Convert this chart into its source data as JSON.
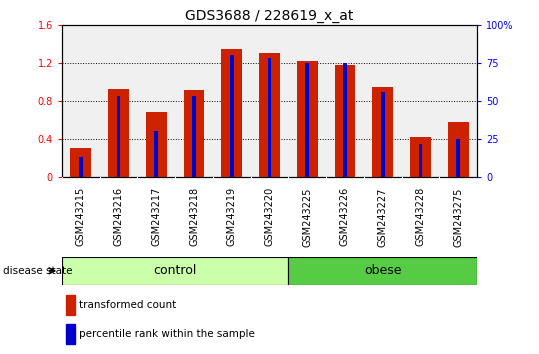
{
  "title": "GDS3688 / 228619_x_at",
  "samples": [
    "GSM243215",
    "GSM243216",
    "GSM243217",
    "GSM243218",
    "GSM243219",
    "GSM243220",
    "GSM243225",
    "GSM243226",
    "GSM243227",
    "GSM243228",
    "GSM243275"
  ],
  "transformed_count": [
    0.3,
    0.93,
    0.68,
    0.91,
    1.35,
    1.3,
    1.22,
    1.18,
    0.95,
    0.42,
    0.58
  ],
  "percentile_pct": [
    13,
    53,
    30,
    53,
    80,
    78,
    75,
    75,
    56,
    22,
    25
  ],
  "bar_color": "#cc2200",
  "blue_color": "#0000cc",
  "ylim_left": [
    0,
    1.6
  ],
  "ylim_right": [
    0,
    100
  ],
  "yticks_left": [
    0,
    0.4,
    0.8,
    1.2,
    1.6
  ],
  "yticks_right": [
    0,
    25,
    50,
    75,
    100
  ],
  "ytick_labels_left": [
    "0",
    "0.4",
    "0.8",
    "1.2",
    "1.6"
  ],
  "ytick_labels_right": [
    "0",
    "25",
    "50",
    "75",
    "100%"
  ],
  "control_color": "#ccffaa",
  "obese_color": "#55cc44",
  "sample_bg_color": "#cccccc",
  "plot_bg_color": "#f0f0f0",
  "disease_state_label": "disease state",
  "legend_items": [
    {
      "label": "transformed count",
      "color": "#cc2200"
    },
    {
      "label": "percentile rank within the sample",
      "color": "#0000cc"
    }
  ],
  "bar_width": 0.55,
  "title_fontsize": 10,
  "tick_fontsize": 7,
  "label_fontsize": 8,
  "group_fontsize": 9
}
